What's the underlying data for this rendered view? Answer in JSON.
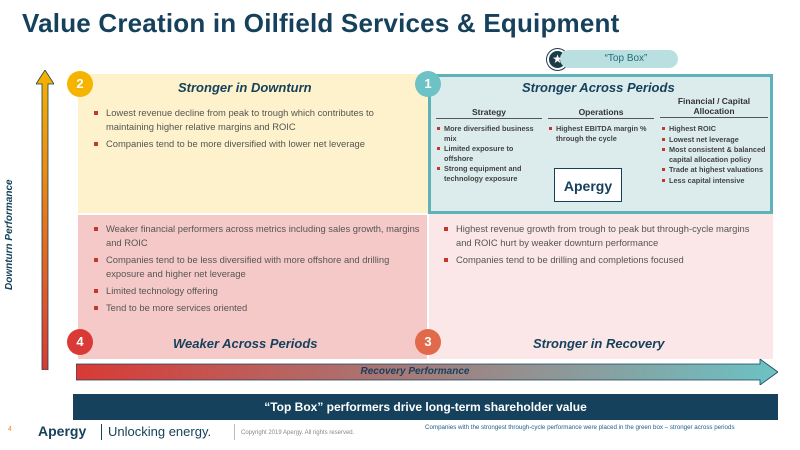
{
  "title": "Value Creation in Oilfield Services & Equipment",
  "top_box_badge": "“Top Box”",
  "axes": {
    "vertical_label": "Downturn Performance",
    "horizontal_label": "Recovery Performance",
    "colors": {
      "vertical": [
        "#f5b400",
        "#d93a35"
      ],
      "horizontal": [
        "#d93a35",
        "#6cc2c4"
      ]
    }
  },
  "quadrants": {
    "q2": {
      "number": "2",
      "title": "Stronger in Downturn",
      "bullets": [
        "Lowest revenue decline from peak to trough which contributes to maintaining higher relative margins and ROIC",
        "Companies tend to be more diversified with lower net leverage"
      ]
    },
    "q1": {
      "number": "1",
      "title": "Stronger Across Periods",
      "columns": [
        {
          "head": "Strategy",
          "items": [
            "More diversified business mix",
            "Limited exposure to offshore",
            "Strong equipment and technology exposure"
          ]
        },
        {
          "head": "Operations",
          "items": [
            "Highest EBITDA margin % through the cycle"
          ]
        },
        {
          "head": "Financial / Capital Allocation",
          "items": [
            "Highest ROIC",
            "Lowest net leverage",
            "Most consistent & balanced capital allocation policy",
            "Trade at highest valuations",
            "Less capital intensive"
          ]
        }
      ],
      "logo": "Apergy"
    },
    "q4": {
      "number": "4",
      "title": "Weaker Across Periods",
      "bullets": [
        "Weaker financial performers across metrics including sales growth, margins and ROIC",
        "Companies tend to be less diversified with more offshore and drilling exposure and higher net leverage",
        "Limited technology offering",
        "Tend to be more services oriented"
      ]
    },
    "q3": {
      "number": "3",
      "title": "Stronger in Recovery",
      "bullets": [
        "Highest revenue growth from trough to peak but through-cycle margins and ROIC hurt by weaker downturn performance",
        "Companies tend to be drilling and completions focused"
      ]
    }
  },
  "banner": "“Top Box” performers drive long-term shareholder value",
  "footer": {
    "page": "4",
    "logo": "Apergy",
    "tagline": "Unlocking energy.",
    "copyright": "Copyright 2019 Apergy. All rights reserved.",
    "note": "Companies with the strongest through-cycle performance were placed in the green box – stronger across periods"
  }
}
